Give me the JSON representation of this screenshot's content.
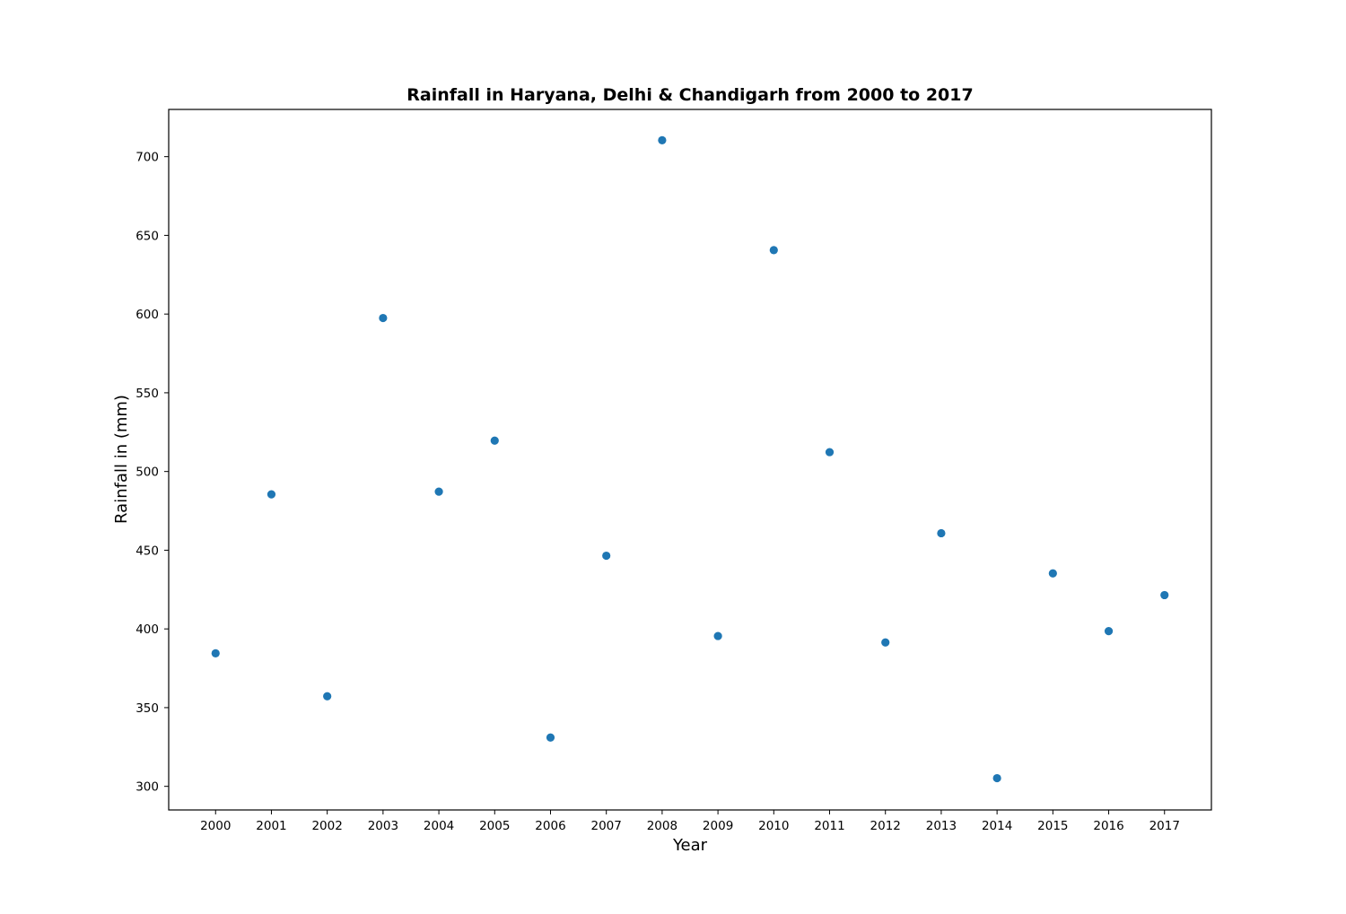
{
  "chart_data": {
    "type": "scatter",
    "title": "Rainfall in Haryana, Delhi & Chandigarh from 2000 to 2017",
    "xlabel": "Year",
    "ylabel": "Rainfall in (mm)",
    "x_ticks": [
      "2000",
      "2001",
      "2002",
      "2003",
      "2004",
      "2005",
      "2006",
      "2007",
      "2008",
      "2009",
      "2010",
      "2011",
      "2012",
      "2013",
      "2014",
      "2015",
      "2016",
      "2017"
    ],
    "y_ticks": [
      300,
      350,
      400,
      450,
      500,
      550,
      600,
      650,
      700
    ],
    "xlim": [
      1999.16,
      2017.84
    ],
    "ylim": [
      285,
      730
    ],
    "grid": false,
    "legend": "none",
    "marker_color": "#1f77b4",
    "x": [
      2000,
      2001,
      2002,
      2003,
      2004,
      2005,
      2006,
      2007,
      2008,
      2009,
      2010,
      2011,
      2012,
      2013,
      2014,
      2015,
      2016,
      2017
    ],
    "y": [
      384.5,
      485.5,
      357.2,
      597.5,
      487.2,
      519.6,
      331.0,
      446.5,
      710.4,
      395.5,
      640.6,
      512.3,
      391.4,
      460.8,
      305.2,
      435.3,
      398.6,
      421.5
    ]
  }
}
